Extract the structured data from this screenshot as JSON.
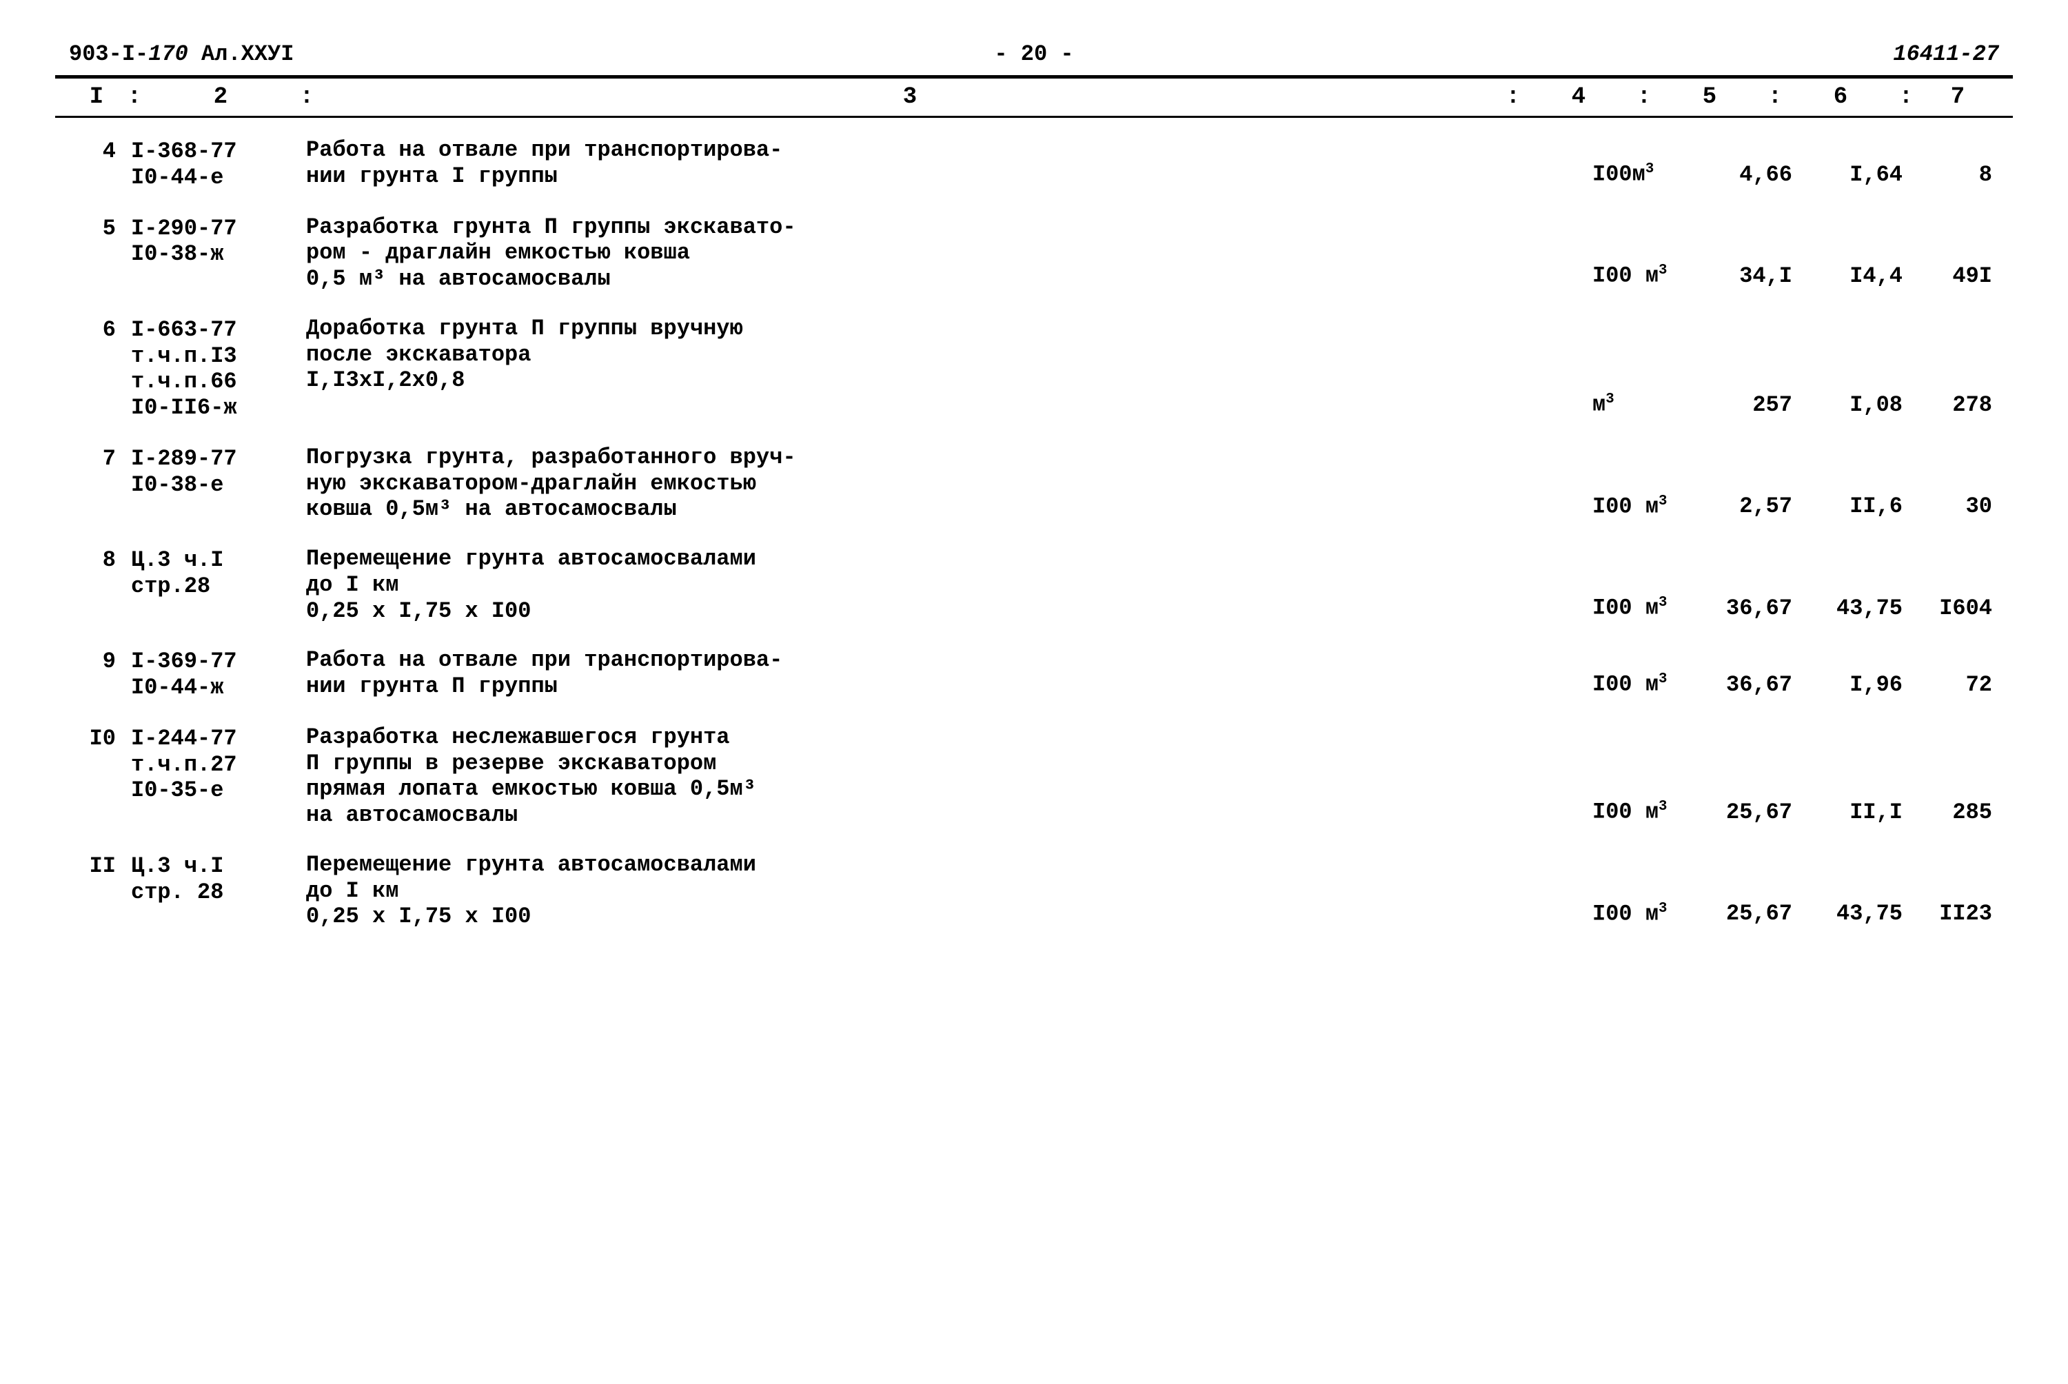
{
  "header": {
    "left_code": "903-I-",
    "left_hw": "170",
    "left_suffix": "  Ал.XXУI",
    "page_no": "-  20  -",
    "right_hw": "16411-27"
  },
  "columns": {
    "c1": "I",
    "c2": "2",
    "c3": "3",
    "c4": "4",
    "c5": "5",
    "c6": "6",
    "c7": "7",
    "sep": ":"
  },
  "rows": [
    {
      "n": "4",
      "code": "I-368-77\nI0-44-е",
      "desc": "Работа на отвале при транспортирова-\nнии грунта I группы",
      "unit": "I00м",
      "unit_sup": "3",
      "v5": "4,66",
      "v6": "I,64",
      "v7": "8"
    },
    {
      "n": "5",
      "code": "I-290-77\nI0-38-ж",
      "desc": "Разработка грунта П группы экскавато-\nром - драглайн емкостью ковша\n0,5 м³ на автосамосвалы",
      "unit": "I00 м",
      "unit_sup": "3",
      "v5": "34,I",
      "v6": "I4,4",
      "v7": "49I"
    },
    {
      "n": "6",
      "code": "I-663-77\nт.ч.п.I3\nт.ч.п.66\nI0-II6-ж",
      "desc": "Доработка грунта П группы вручную\nпосле экскаватора\n   I,I3xI,2x0,8",
      "unit": "м",
      "unit_sup": "3",
      "v5": "257",
      "v6": "I,08",
      "v7": "278"
    },
    {
      "n": "7",
      "code": "I-289-77\nI0-38-е",
      "desc": "Погрузка грунта, разработанного вруч-\nную экскаватором-драглайн емкостью\nковша 0,5м³ на автосамосвалы",
      "unit": "I00 м",
      "unit_sup": "3",
      "v5": "2,57",
      "v6": "II,6",
      "v7": "30"
    },
    {
      "n": "8",
      "code": "Ц.3 ч.I\nстр.28",
      "desc": "Перемещение грунта автосамосвалами\nдо I км\n0,25 x I,75 x I00",
      "unit": "I00 м",
      "unit_sup": "3",
      "v5": "36,67",
      "v6": "43,75",
      "v7": "I604"
    },
    {
      "n": "9",
      "code": "I-369-77\nI0-44-ж",
      "desc": "Работа на отвале при транспортирова-\nнии грунта П группы",
      "unit": "I00 м",
      "unit_sup": "3",
      "v5": "36,67",
      "v6": "I,96",
      "v7": "72"
    },
    {
      "n": "I0",
      "code": "I-244-77\nт.ч.п.27\nI0-35-е",
      "desc": "Разработка неслежавшегося грунта\nП группы в резерве экскаватором\nпрямая лопата емкостью ковша 0,5м³\nна автосамосвалы",
      "unit": "I00 м",
      "unit_sup": "3",
      "v5": "25,67",
      "v6": "II,I",
      "v7": "285"
    },
    {
      "n": "II",
      "code": "Ц.3 ч.I\nстр. 28",
      "desc": "Перемещение грунта автосамосвалами\nдо I км\n     0,25 x I,75 x I00",
      "unit": "I00 м",
      "unit_sup": "3",
      "v5": "25,67",
      "v6": "43,75",
      "v7": "II23"
    }
  ]
}
